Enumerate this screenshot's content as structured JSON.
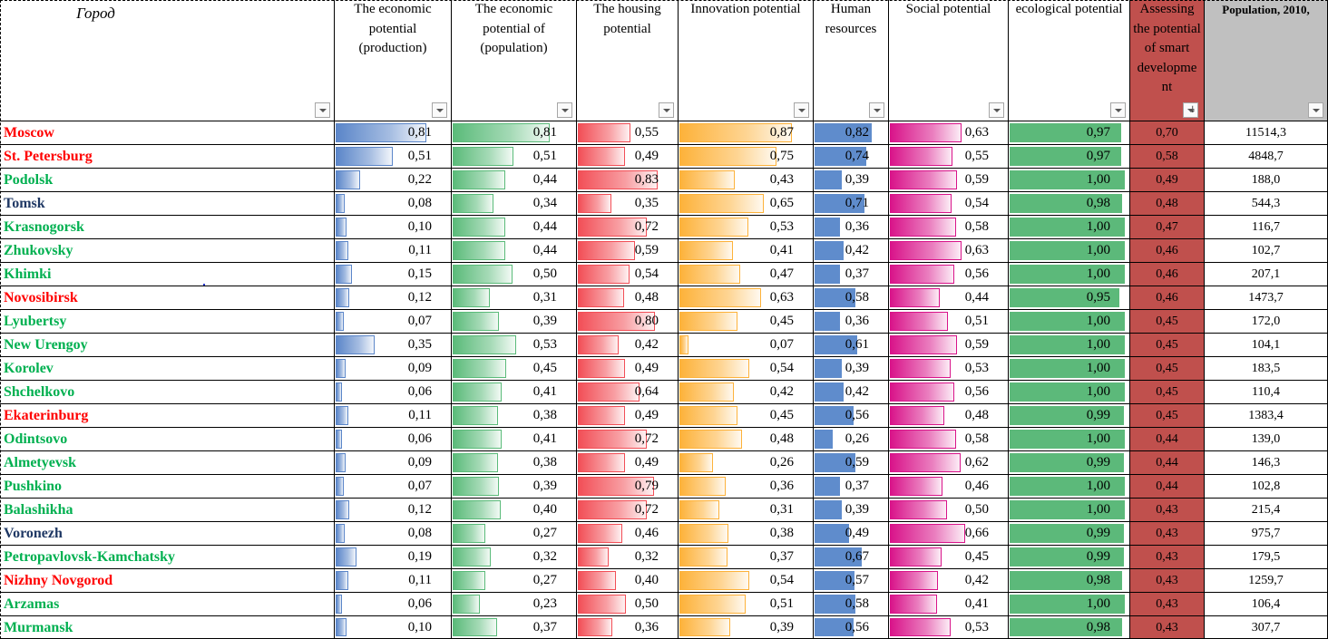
{
  "table": {
    "city_header": "Город",
    "columns": [
      {
        "key": "econ_prod",
        "header": "The economic potential (production)",
        "bar_color": "#5b86c9",
        "bar_style": "gradient"
      },
      {
        "key": "econ_pop",
        "header": "The economic potential of (population)",
        "bar_color": "#5bbb7a",
        "bar_style": "gradient"
      },
      {
        "key": "housing",
        "header": "The housing potential",
        "bar_color": "#f24f57",
        "bar_style": "gradient"
      },
      {
        "key": "innovation",
        "header": "Innovation potential",
        "bar_color": "#fdb23a",
        "bar_style": "gradient"
      },
      {
        "key": "human",
        "header": "Human resources",
        "bar_color": "#5f8ccc",
        "bar_style": "solid"
      },
      {
        "key": "social",
        "header": "Social potential",
        "bar_color": "#d9148a",
        "bar_style": "gradient"
      },
      {
        "key": "ecological",
        "header": "ecological potential",
        "bar_color": "#5cb97a",
        "bar_style": "solid"
      },
      {
        "key": "smart",
        "header": "Assessing the potential of smart developme nt",
        "fill_color": "#c0504d",
        "bar_style": "fill"
      },
      {
        "key": "population",
        "header": "Population, 2010,",
        "header_fill": "#c0c0c0",
        "bar_style": "none"
      }
    ],
    "rows": [
      {
        "city": "Moscow",
        "city_color": "#ff0000",
        "values": [
          "0,81",
          "0,81",
          "0,55",
          "0,87",
          "0,82",
          "0,63",
          "0,97",
          "0,70",
          "11514,3"
        ]
      },
      {
        "city": "St. Petersburg",
        "city_color": "#ff0000",
        "values": [
          "0,51",
          "0,51",
          "0,49",
          "0,75",
          "0,74",
          "0,55",
          "0,97",
          "0,58",
          "4848,7"
        ]
      },
      {
        "city": "Podolsk",
        "city_color": "#00b050",
        "values": [
          "0,22",
          "0,44",
          "0,83",
          "0,43",
          "0,39",
          "0,59",
          "1,00",
          "0,49",
          "188,0"
        ]
      },
      {
        "city": "Tomsk",
        "city_color": "#1f3864",
        "values": [
          "0,08",
          "0,34",
          "0,35",
          "0,65",
          "0,71",
          "0,54",
          "0,98",
          "0,48",
          "544,3"
        ]
      },
      {
        "city": "Krasnogorsk",
        "city_color": "#00b050",
        "values": [
          "0,10",
          "0,44",
          "0,72",
          "0,53",
          "0,36",
          "0,58",
          "1,00",
          "0,47",
          "116,7"
        ]
      },
      {
        "city": "Zhukovsky",
        "city_color": "#00b050",
        "values": [
          "0,11",
          "0,44",
          "0,59",
          "0,41",
          "0,42",
          "0,63",
          "1,00",
          "0,46",
          "102,7"
        ]
      },
      {
        "city": "Khimki",
        "city_color": "#00b050",
        "values": [
          "0,15",
          "0,50",
          "0,54",
          "0,47",
          "0,37",
          "0,56",
          "1,00",
          "0,46",
          "207,1"
        ]
      },
      {
        "city": "Novosibirsk",
        "city_color": "#ff0000",
        "values": [
          "0,12",
          "0,31",
          "0,48",
          "0,63",
          "0,58",
          "0,44",
          "0,95",
          "0,46",
          "1473,7"
        ]
      },
      {
        "city": "Lyubertsy",
        "city_color": "#00b050",
        "values": [
          "0,07",
          "0,39",
          "0,80",
          "0,45",
          "0,36",
          "0,51",
          "1,00",
          "0,45",
          "172,0"
        ]
      },
      {
        "city": "New Urengoy",
        "city_color": "#00b050",
        "values": [
          "0,35",
          "0,53",
          "0,42",
          "0,07",
          "0,61",
          "0,59",
          "1,00",
          "0,45",
          "104,1"
        ]
      },
      {
        "city": "Korolev",
        "city_color": "#00b050",
        "values": [
          "0,09",
          "0,45",
          "0,49",
          "0,54",
          "0,39",
          "0,53",
          "1,00",
          "0,45",
          "183,5"
        ]
      },
      {
        "city": "Shchelkovo",
        "city_color": "#00b050",
        "values": [
          "0,06",
          "0,41",
          "0,64",
          "0,42",
          "0,42",
          "0,56",
          "1,00",
          "0,45",
          "110,4"
        ]
      },
      {
        "city": "Ekaterinburg",
        "city_color": "#ff0000",
        "values": [
          "0,11",
          "0,38",
          "0,49",
          "0,45",
          "0,56",
          "0,48",
          "0,99",
          "0,45",
          "1383,4"
        ]
      },
      {
        "city": "Odintsovo",
        "city_color": "#00b050",
        "values": [
          "0,06",
          "0,41",
          "0,72",
          "0,48",
          "0,26",
          "0,58",
          "1,00",
          "0,44",
          "139,0"
        ]
      },
      {
        "city": "Almetyevsk",
        "city_color": "#00b050",
        "values": [
          "0,09",
          "0,38",
          "0,49",
          "0,26",
          "0,59",
          "0,62",
          "0,99",
          "0,44",
          "146,3"
        ]
      },
      {
        "city": "Pushkino",
        "city_color": "#00b050",
        "values": [
          "0,07",
          "0,39",
          "0,79",
          "0,36",
          "0,37",
          "0,46",
          "1,00",
          "0,44",
          "102,8"
        ]
      },
      {
        "city": "Balashikha",
        "city_color": "#00b050",
        "values": [
          "0,12",
          "0,40",
          "0,72",
          "0,31",
          "0,39",
          "0,50",
          "1,00",
          "0,43",
          "215,4"
        ]
      },
      {
        "city": "Voronezh",
        "city_color": "#1f3864",
        "values": [
          "0,08",
          "0,27",
          "0,46",
          "0,38",
          "0,49",
          "0,66",
          "0,99",
          "0,43",
          "975,7"
        ]
      },
      {
        "city": "Petropavlovsk-Kamchatsky",
        "city_color": "#00b050",
        "values": [
          "0,19",
          "0,32",
          "0,32",
          "0,37",
          "0,67",
          "0,45",
          "0,99",
          "0,43",
          "179,5"
        ]
      },
      {
        "city": "Nizhny Novgorod",
        "city_color": "#ff0000",
        "values": [
          "0,11",
          "0,27",
          "0,40",
          "0,54",
          "0,57",
          "0,42",
          "0,98",
          "0,43",
          "1259,7"
        ]
      },
      {
        "city": "Arzamas",
        "city_color": "#00b050",
        "values": [
          "0,06",
          "0,23",
          "0,50",
          "0,51",
          "0,58",
          "0,41",
          "1,00",
          "0,43",
          "106,4"
        ]
      },
      {
        "city": "Murmansk",
        "city_color": "#00b050",
        "values": [
          "0,10",
          "0,37",
          "0,36",
          "0,39",
          "0,56",
          "0,53",
          "0,98",
          "0,43",
          "307,7"
        ]
      }
    ]
  }
}
